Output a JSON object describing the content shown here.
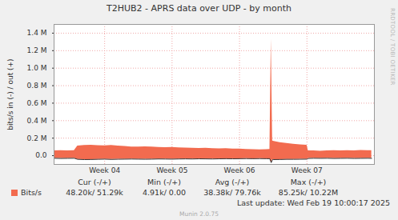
{
  "chart_data": {
    "type": "area",
    "title": "T2HUB2 - APRS data over UDP - by month",
    "y_label": "bits/s in (-) / out (+)",
    "x": [
      3.25,
      3.35,
      3.45,
      3.55,
      3.6,
      3.7,
      3.8,
      3.9,
      4.0,
      4.1,
      4.2,
      4.3,
      4.4,
      4.5,
      4.6,
      4.7,
      4.8,
      4.9,
      5.0,
      5.1,
      5.2,
      5.3,
      5.4,
      5.5,
      5.6,
      5.7,
      5.8,
      5.9,
      6.0,
      6.1,
      6.2,
      6.3,
      6.4,
      6.45,
      6.47,
      6.49,
      6.5,
      6.6,
      6.7,
      6.8,
      6.9,
      7.0,
      7.02,
      7.1,
      7.2,
      7.3,
      7.4,
      7.5,
      7.6,
      7.7,
      7.8,
      7.9,
      7.96
    ],
    "series": [
      {
        "name": "Bits/s",
        "color": "#f26b4f",
        "values": [
          55000,
          58000,
          56000,
          57000,
          110000,
          118000,
          120000,
          115000,
          112000,
          118000,
          110000,
          105000,
          100000,
          98000,
          102000,
          100000,
          95000,
          92000,
          95000,
          90000,
          88000,
          85000,
          82000,
          85000,
          80000,
          78000,
          80000,
          76000,
          75000,
          72000,
          70000,
          68000,
          70000,
          72000,
          1330000,
          170000,
          165000,
          150000,
          140000,
          130000,
          125000,
          120000,
          55000,
          55000,
          52000,
          55000,
          57000,
          55000,
          58000,
          56000,
          60000,
          58000,
          57000
        ],
        "in_values": [
          -30000,
          -32000,
          -31000,
          -30000,
          -42000,
          -45000,
          -44000,
          -42000,
          -40000,
          -43000,
          -41000,
          -40000,
          -39000,
          -40000,
          -41000,
          -40000,
          -38000,
          -39000,
          -40000,
          -38000,
          -37000,
          -38000,
          -36000,
          -37000,
          -38000,
          -36000,
          -35000,
          -36000,
          -35000,
          -34000,
          -35000,
          -34000,
          -35000,
          -35000,
          -80000,
          -45000,
          -45000,
          -44000,
          -42000,
          -42000,
          -41000,
          -40000,
          -32000,
          -30000,
          -31000,
          -30000,
          -32000,
          -31000,
          -30000,
          -32000,
          -31000,
          -30000,
          -31000
        ]
      }
    ],
    "xlim": [
      3.25,
      8.0
    ],
    "xticks": [
      {
        "value": 4,
        "label": "Week 04"
      },
      {
        "value": 5,
        "label": "Week 05"
      },
      {
        "value": 6,
        "label": "Week 06"
      },
      {
        "value": 7,
        "label": "Week 07"
      }
    ],
    "ylim": [
      -100000,
      1500000
    ],
    "yticks": [
      {
        "value": 0,
        "label": "0.0"
      },
      {
        "value": 200000,
        "label": "0.2 M"
      },
      {
        "value": 400000,
        "label": "0.4 M"
      },
      {
        "value": 600000,
        "label": "0.6 M"
      },
      {
        "value": 800000,
        "label": "0.8 M"
      },
      {
        "value": 1000000,
        "label": "1.0 M"
      },
      {
        "value": 1200000,
        "label": "1.2 M"
      },
      {
        "value": 1400000,
        "label": "1.4 M"
      }
    ],
    "grid": true,
    "summary": {
      "columns": [
        "Cur (-/+)",
        "Min (-/+)",
        "Avg (-/+)",
        "Max (-/+)"
      ],
      "values": [
        "48.20k/ 51.29k",
        "4.91k/ 0.00",
        "38.38k/ 79.76k",
        "85.25k/ 10.22M"
      ]
    },
    "footer": "Last update: Wed Feb 19 10:00:17 2025",
    "credit": "Munin 2.0.75",
    "watermark": "RRDTOOL / TOBI OETIKER"
  }
}
